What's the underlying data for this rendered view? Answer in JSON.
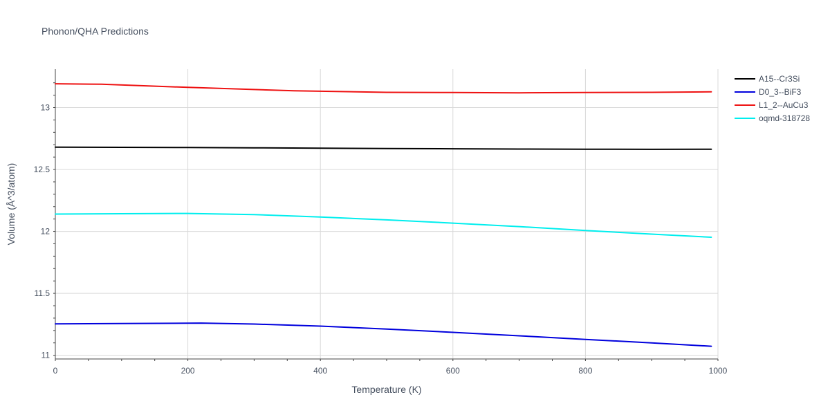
{
  "chart_data": {
    "type": "line",
    "title": "Phonon/QHA Predictions",
    "xlabel": "Temperature (K)",
    "ylabel": "Volume (Å^3/atom)",
    "xlim": [
      0,
      1000
    ],
    "ylim": [
      10.97,
      13.31
    ],
    "xticks": [
      0,
      200,
      400,
      600,
      800,
      1000
    ],
    "yticks": [
      11,
      11.5,
      12,
      12.5,
      13
    ],
    "grid": true,
    "legend_position": "top-right",
    "series": [
      {
        "name": "A15--Cr3Si",
        "color": "#000000",
        "x": [
          0,
          100,
          200,
          300,
          400,
          500,
          600,
          700,
          800,
          900,
          990
        ],
        "y": [
          12.68,
          12.679,
          12.677,
          12.675,
          12.672,
          12.669,
          12.667,
          12.665,
          12.664,
          12.663,
          12.664
        ]
      },
      {
        "name": "D0_3--BiF3",
        "color": "#0000dd",
        "x": [
          0,
          100,
          200,
          220,
          300,
          400,
          500,
          600,
          700,
          800,
          900,
          990
        ],
        "y": [
          11.253,
          11.256,
          11.259,
          11.26,
          11.252,
          11.235,
          11.212,
          11.185,
          11.157,
          11.128,
          11.1,
          11.073
        ]
      },
      {
        "name": "L1_2--AuCu3",
        "color": "#ee1111",
        "x": [
          0,
          70,
          200,
          360,
          500,
          600,
          700,
          800,
          900,
          990
        ],
        "y": [
          13.192,
          13.188,
          13.163,
          13.135,
          13.123,
          13.121,
          13.119,
          13.121,
          13.123,
          13.127
        ]
      },
      {
        "name": "oqmd-318728",
        "color": "#00eeee",
        "x": [
          0,
          100,
          200,
          300,
          400,
          500,
          600,
          700,
          800,
          900,
          990
        ],
        "y": [
          12.14,
          12.143,
          12.145,
          12.136,
          12.116,
          12.093,
          12.067,
          12.039,
          12.007,
          11.978,
          11.953
        ]
      }
    ]
  }
}
